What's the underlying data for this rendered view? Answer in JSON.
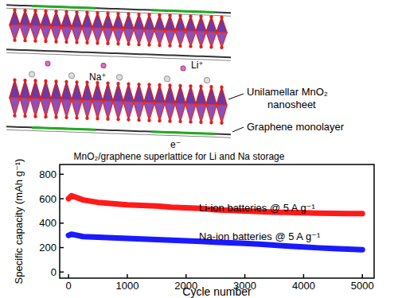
{
  "chart_data": {
    "type": "line",
    "xlabel": "Cycle number",
    "ylabel": "Specific capacity (mAh g⁻¹)",
    "x": [
      0,
      50,
      250,
      500,
      750,
      1000,
      1250,
      1500,
      1750,
      2000,
      2250,
      2500,
      2750,
      3000,
      3250,
      3500,
      3750,
      4000,
      4250,
      4500,
      4750,
      5000
    ],
    "series": [
      {
        "name": "Li-ion batteries @ 5 A g⁻¹",
        "color": "#ff1a1a",
        "line_style": "solid",
        "values": [
          600,
          625,
          590,
          570,
          560,
          550,
          545,
          540,
          530,
          525,
          520,
          510,
          505,
          500,
          495,
          490,
          488,
          485,
          482,
          480,
          478,
          478
        ]
      },
      {
        "name": "Na-ion batteries @ 5 A g⁻¹",
        "color": "#1a1aff",
        "line_style": "solid",
        "values": [
          300,
          310,
          290,
          285,
          280,
          275,
          270,
          265,
          260,
          255,
          250,
          245,
          240,
          235,
          228,
          220,
          212,
          205,
          198,
          192,
          187,
          183
        ]
      }
    ],
    "xlim": [
      -150,
      5200
    ],
    "ylim": [
      -50,
      880
    ],
    "xticks": [
      0,
      1000,
      2000,
      3000,
      4000,
      5000
    ],
    "yticks": [
      0,
      200,
      400,
      600,
      800
    ],
    "grid": false
  },
  "diagram": {
    "caption": "MnO₂/graphene superlattice for Li and Na storage",
    "li_ion": "Li⁺",
    "na_ion": "Na⁺",
    "electron": "e⁻",
    "nanosheet_label": [
      "Unilamellar MnO₂",
      "nanosheet"
    ],
    "graphene_label": "Graphene monolayer"
  }
}
